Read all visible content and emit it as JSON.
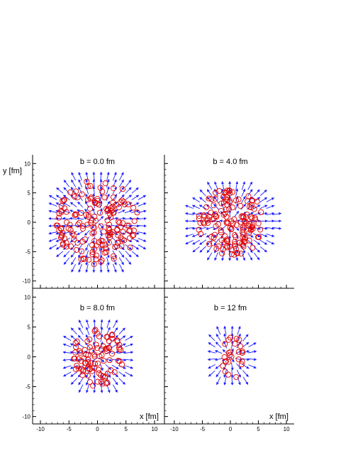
{
  "chart_data": {
    "type": "scatter",
    "description_kind": "2x2 panel grid of nucleon positions (circles) with flow vectors (arrows)",
    "xlabel": "x [fm]",
    "ylabel": "y [fm]",
    "xlim": [
      -11,
      11
    ],
    "ylim": [
      -11,
      11
    ],
    "x_ticks": [
      -10,
      -5,
      0,
      5,
      10
    ],
    "y_ticks": [
      -10,
      -5,
      0,
      5,
      10
    ],
    "x_tick_labels": [
      "-10",
      "-5",
      "0",
      "5",
      "10"
    ],
    "y_tick_labels": [
      "-10",
      "-5",
      "0",
      "5",
      "10"
    ],
    "colors": {
      "arrows": "#1f1fff",
      "points": "#e00000",
      "axes": "#000000"
    },
    "panels": [
      {
        "title": "b = 0.0 fm",
        "b": 0.0,
        "radius_x": 7.2,
        "radius_y": 7.2,
        "arrow_extent_y": 9.0,
        "arrow_extent_x": 9.0,
        "n_points": 170
      },
      {
        "title": "b = 4.0 fm",
        "b": 4.0,
        "radius_x": 6.0,
        "radius_y": 5.8,
        "arrow_extent_y": 7.0,
        "arrow_extent_x": 8.5,
        "n_points": 150
      },
      {
        "title": "b = 8.0 fm",
        "b": 8.0,
        "radius_x": 4.5,
        "radius_y": 5.0,
        "arrow_extent_y": 6.5,
        "arrow_extent_x": 6.5,
        "n_points": 90
      },
      {
        "title": "b = 12 fm",
        "b": 12.0,
        "radius_x": 2.3,
        "radius_y": 4.0,
        "arrow_extent_y": 5.2,
        "arrow_extent_x": 4.5,
        "n_points": 25
      }
    ]
  }
}
